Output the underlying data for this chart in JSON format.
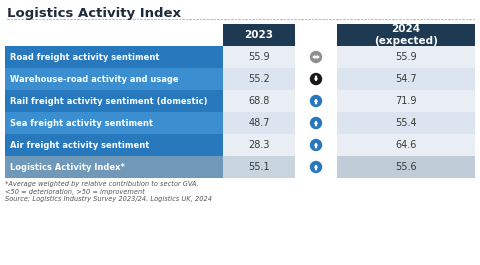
{
  "title": "Logistics Activity Index",
  "rows": [
    {
      "label": "Road freight activity sentiment",
      "val2023": "55.9",
      "val2024": "55.9",
      "arrow": "neutral"
    },
    {
      "label": "Warehouse-road activity and usage",
      "val2023": "55.2",
      "val2024": "54.7",
      "arrow": "down"
    },
    {
      "label": "Rail freight activity sentiment (domestic)",
      "val2023": "68.8",
      "val2024": "71.9",
      "arrow": "up"
    },
    {
      "label": "Sea freight activity sentiment",
      "val2023": "48.7",
      "val2024": "55.4",
      "arrow": "up"
    },
    {
      "label": "Air freight activity sentiment",
      "val2023": "28.3",
      "val2024": "64.6",
      "arrow": "up"
    },
    {
      "label": "Logistics Activity Index*",
      "val2023": "55.1",
      "val2024": "55.6",
      "arrow": "up"
    }
  ],
  "col2023_header": "2023",
  "col2024_header": "2024\n(expected)",
  "footnote1": "*Average weighted by relative contribution to sector GVA.",
  "footnote2": "<50 = deterioration, >50 = improvement",
  "footnote3": "Source: Logistics Industry Survey 2023/24. Logistics UK, 2024",
  "bg_color": "#ffffff",
  "header_dark": "#1e3a52",
  "row_blue_dark": "#2878be",
  "row_blue_light": "#3b8fd1",
  "row_last_label": "#7098b8",
  "val_light1": "#e8eef4",
  "val_light2": "#dce5ef",
  "val_last": "#c8d4de",
  "val2024_last": "#c0ccd8",
  "text_white": "#ffffff",
  "text_dark": "#1e2b3a",
  "text_val": "#3a3a3a",
  "dotted_line_color": "#bbbbbb",
  "arrow_up_color": "#2878be",
  "arrow_neutral_color": "#909090",
  "arrow_down_color": "#1a1a1a"
}
